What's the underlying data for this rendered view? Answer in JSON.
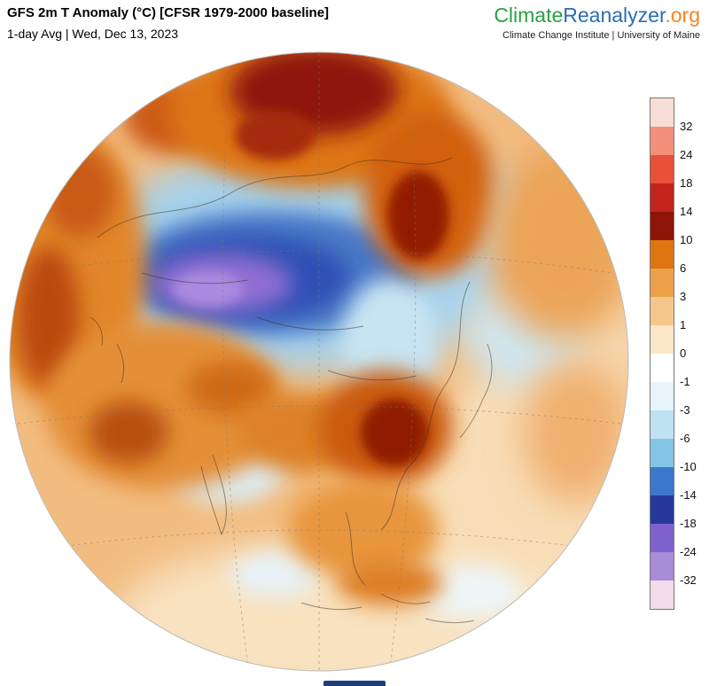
{
  "header": {
    "title": "GFS 2m T Anomaly (°C) [CFSR 1979-2000 baseline]",
    "subtitle": "1-day Avg | Wed, Dec 13, 2023"
  },
  "brand": {
    "climate": "Climate",
    "reanalyzer": "Reanalyzer",
    "org": ".org",
    "tagline": "Climate Change Institute | University of Maine",
    "climate_color": "#27a143",
    "reanalyzer_color": "#2a6db5",
    "org_color": "#f6821f"
  },
  "colorbar": {
    "ticks": [
      "32",
      "24",
      "18",
      "14",
      "10",
      "6",
      "3",
      "1",
      "0",
      "-1",
      "-3",
      "-6",
      "-10",
      "-14",
      "-18",
      "-24",
      "-32"
    ],
    "segment_colors": [
      "#f7ddd6",
      "#f2907a",
      "#e85038",
      "#c3241c",
      "#8f1408",
      "#dd7610",
      "#eda148",
      "#f4c68c",
      "#fbe7c8",
      "#ffffff",
      "#e8f4fa",
      "#bfe2f2",
      "#85c4e4",
      "#3d77cc",
      "#26399b",
      "#7e62cc",
      "#a78cd8",
      "#f2dcea"
    ]
  },
  "footer": {
    "bar_color": "#1f3d7a"
  }
}
